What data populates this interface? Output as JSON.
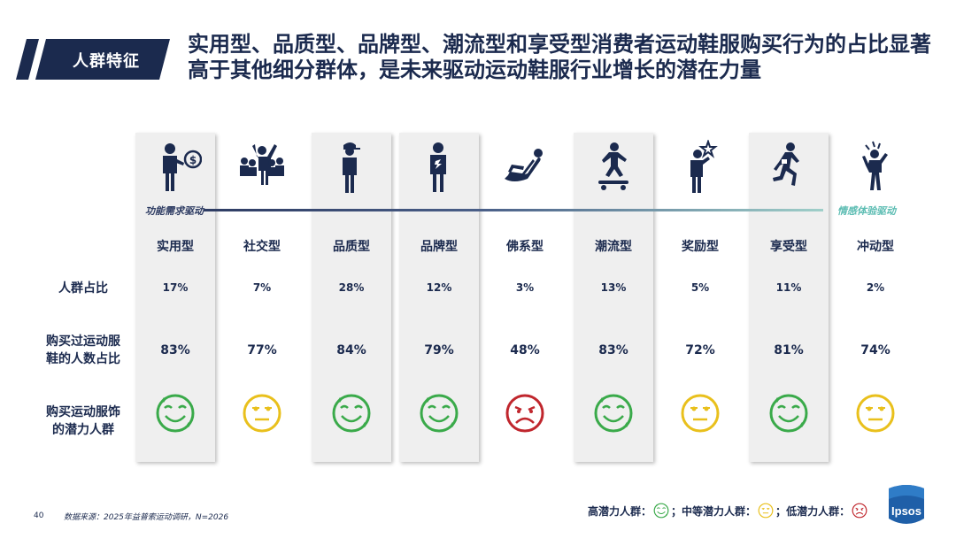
{
  "tag": "人群特征",
  "headline": "实用型、品质型、品牌型、潮流型和享受型消费者运动鞋服购买行为的占比显著高于其他细分群体，是未来驱动运动鞋服行业增长的潜在力量",
  "axis": {
    "left_label": "功能需求驱动",
    "right_label": "情感体验驱动"
  },
  "row_labels": {
    "share": "人群占比",
    "bought": "购买过运动服鞋的人数占比",
    "bought_line1": "购买过运动服",
    "bought_line2": "鞋的人数占比",
    "potential_line1": "购买运动服饰",
    "potential_line2": "的潜力人群"
  },
  "segments": [
    {
      "name": "实用型",
      "share": "17%",
      "bought": "83%",
      "potential": "high",
      "icon": "person-dollar-icon",
      "highlight": true
    },
    {
      "name": "社交型",
      "share": "7%",
      "bought": "77%",
      "potential": "medium",
      "icon": "crowd-cheering-icon",
      "highlight": false
    },
    {
      "name": "品质型",
      "share": "28%",
      "bought": "84%",
      "potential": "high",
      "icon": "person-cap-icon",
      "highlight": true
    },
    {
      "name": "品牌型",
      "share": "12%",
      "bought": "79%",
      "potential": "high",
      "icon": "person-logo-shirt-icon",
      "highlight": true
    },
    {
      "name": "佛系型",
      "share": "3%",
      "bought": "48%",
      "potential": "low",
      "icon": "person-reclining-icon",
      "highlight": false
    },
    {
      "name": "潮流型",
      "share": "13%",
      "bought": "83%",
      "potential": "high",
      "icon": "skateboarder-icon",
      "highlight": true
    },
    {
      "name": "奖励型",
      "share": "5%",
      "bought": "72%",
      "potential": "medium",
      "icon": "person-star-icon",
      "highlight": false
    },
    {
      "name": "享受型",
      "share": "11%",
      "bought": "81%",
      "potential": "high",
      "icon": "runner-icon",
      "highlight": true
    },
    {
      "name": "冲动型",
      "share": "2%",
      "bought": "74%",
      "potential": "medium",
      "icon": "person-excited-icon",
      "highlight": false
    }
  ],
  "colors": {
    "high": "#3aaa4a",
    "medium": "#e9c01c",
    "low": "#c0262d",
    "navy": "#1b2a4e"
  },
  "footer": {
    "page_number": "40",
    "source": "数据来源：2025年益普索运动调研，N=2026"
  },
  "legend": {
    "high": "高潜力人群：",
    "sep1": "；",
    "medium": "中等潜力人群：",
    "sep2": "；",
    "low": "低潜力人群："
  },
  "logo": "Ipsos"
}
